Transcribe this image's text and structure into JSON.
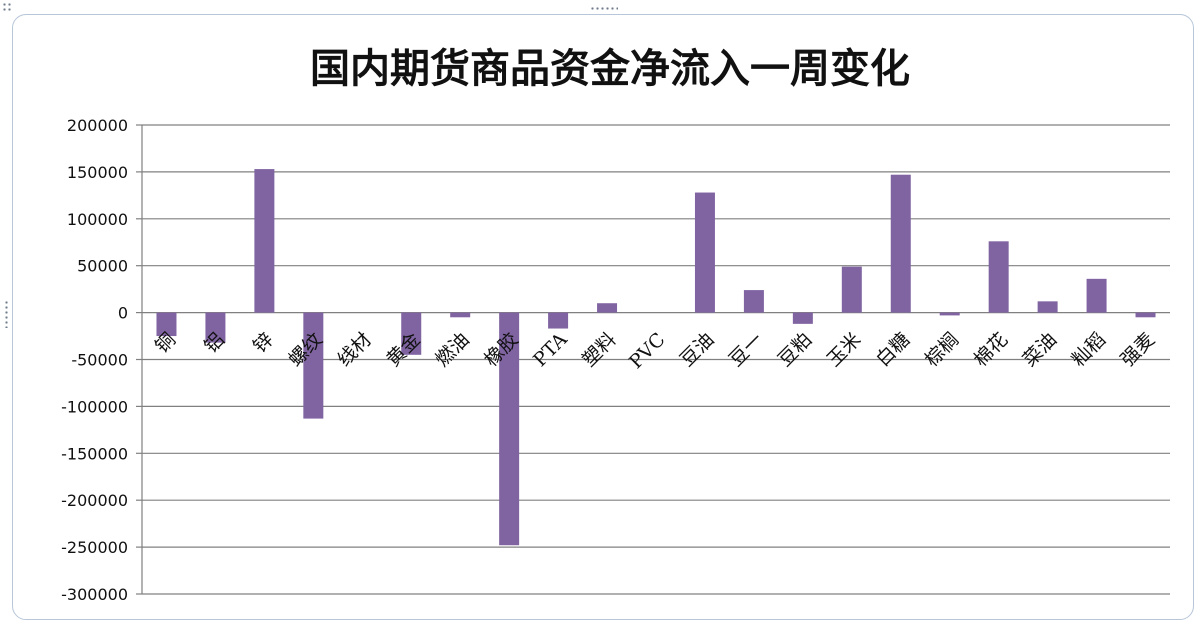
{
  "chart_data": {
    "type": "bar",
    "title": "国内期货商品资金净流入一周变化",
    "xlabel": "",
    "ylabel": "",
    "ylim": [
      -300000,
      200000
    ],
    "yticks": [
      200000,
      150000,
      100000,
      50000,
      0,
      -50000,
      -100000,
      -150000,
      -200000,
      -250000,
      -300000
    ],
    "grid": true,
    "legend": "none",
    "bar_color": "#8064a2",
    "categories": [
      "铜",
      "铝",
      "锌",
      "螺纹",
      "线材",
      "黄金",
      "燃油",
      "橡胶",
      "PTA",
      "塑料",
      "PVC",
      "豆油",
      "豆一",
      "豆粕",
      "玉米",
      "白糖",
      "棕榈",
      "棉花",
      "菜油",
      "籼稻",
      "强麦"
    ],
    "values": [
      -25000,
      -32000,
      153000,
      -113000,
      0,
      -45000,
      -5000,
      -248000,
      -17000,
      10000,
      0,
      128000,
      24000,
      -12000,
      49000,
      147000,
      -3000,
      76000,
      12000,
      36000,
      -5000
    ]
  }
}
